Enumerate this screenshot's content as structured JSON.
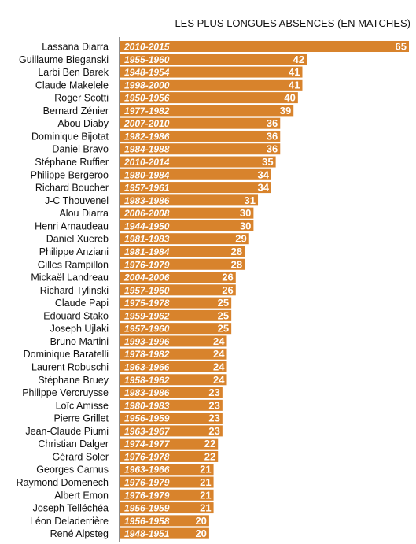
{
  "chart_data": {
    "type": "bar",
    "orientation": "horizontal",
    "title": "LES PLUS LONGUES ABSENCES (EN MATCHES)",
    "bar_color": "#d8832c",
    "xlim": [
      0,
      65
    ],
    "rows": [
      {
        "name": "Lassana Diarra",
        "period": "2010-2015",
        "value": 65
      },
      {
        "name": "Guillaume Bieganski",
        "period": "1955-1960",
        "value": 42
      },
      {
        "name": "Larbi Ben Barek",
        "period": "1948-1954",
        "value": 41
      },
      {
        "name": "Claude Makelele",
        "period": "1998-2000",
        "value": 41
      },
      {
        "name": "Roger Scotti",
        "period": "1950-1956",
        "value": 40
      },
      {
        "name": "Bernard Zénier",
        "period": "1977-1982",
        "value": 39
      },
      {
        "name": "Abou Diaby",
        "period": "2007-2010",
        "value": 36
      },
      {
        "name": "Dominique Bijotat",
        "period": "1982-1986",
        "value": 36
      },
      {
        "name": "Daniel Bravo",
        "period": "1984-1988",
        "value": 36
      },
      {
        "name": "Stéphane Ruffier",
        "period": "2010-2014",
        "value": 35
      },
      {
        "name": "Philippe Bergeroo",
        "period": "1980-1984",
        "value": 34
      },
      {
        "name": "Richard Boucher",
        "period": "1957-1961",
        "value": 34
      },
      {
        "name": "J-C Thouvenel",
        "period": "1983-1986",
        "value": 31
      },
      {
        "name": "Alou Diarra",
        "period": "2006-2008",
        "value": 30
      },
      {
        "name": "Henri Arnaudeau",
        "period": "1944-1950",
        "value": 30
      },
      {
        "name": "Daniel Xuereb",
        "period": "1981-1983",
        "value": 29
      },
      {
        "name": "Philippe Anziani",
        "period": "1981-1984",
        "value": 28
      },
      {
        "name": "Gilles Rampillon",
        "period": "1976-1979",
        "value": 28
      },
      {
        "name": "Mickaël Landreau",
        "period": "2004-2006",
        "value": 26
      },
      {
        "name": "Richard Tylinski",
        "period": "1957-1960",
        "value": 26
      },
      {
        "name": "Claude Papi",
        "period": "1975-1978",
        "value": 25
      },
      {
        "name": "Edouard Stako",
        "period": "1959-1962",
        "value": 25
      },
      {
        "name": "Joseph Ujlaki",
        "period": "1957-1960",
        "value": 25
      },
      {
        "name": "Bruno Martini",
        "period": "1993-1996",
        "value": 24
      },
      {
        "name": "Dominique Baratelli",
        "period": "1978-1982",
        "value": 24
      },
      {
        "name": "Laurent Robuschi",
        "period": "1963-1966",
        "value": 24
      },
      {
        "name": "Stéphane Bruey",
        "period": "1958-1962",
        "value": 24
      },
      {
        "name": "Philippe Vercruysse",
        "period": "1983-1986",
        "value": 23
      },
      {
        "name": "Loïc Amisse",
        "period": "1980-1983",
        "value": 23
      },
      {
        "name": "Pierre Grillet",
        "period": "1956-1959",
        "value": 23
      },
      {
        "name": "Jean-Claude Piumi",
        "period": "1963-1967",
        "value": 23
      },
      {
        "name": "Christian Dalger",
        "period": "1974-1977",
        "value": 22
      },
      {
        "name": "Gérard Soler",
        "period": "1976-1978",
        "value": 22
      },
      {
        "name": "Georges Carnus",
        "period": "1963-1966",
        "value": 21
      },
      {
        "name": "Raymond Domenech",
        "period": "1976-1979",
        "value": 21
      },
      {
        "name": "Albert Emon",
        "period": "1976-1979",
        "value": 21
      },
      {
        "name": "Joseph Telléchéa",
        "period": "1956-1959",
        "value": 21
      },
      {
        "name": "Léon Deladerrière",
        "period": "1956-1958",
        "value": 20
      },
      {
        "name": "René Alpsteg",
        "period": "1948-1951",
        "value": 20
      }
    ]
  }
}
